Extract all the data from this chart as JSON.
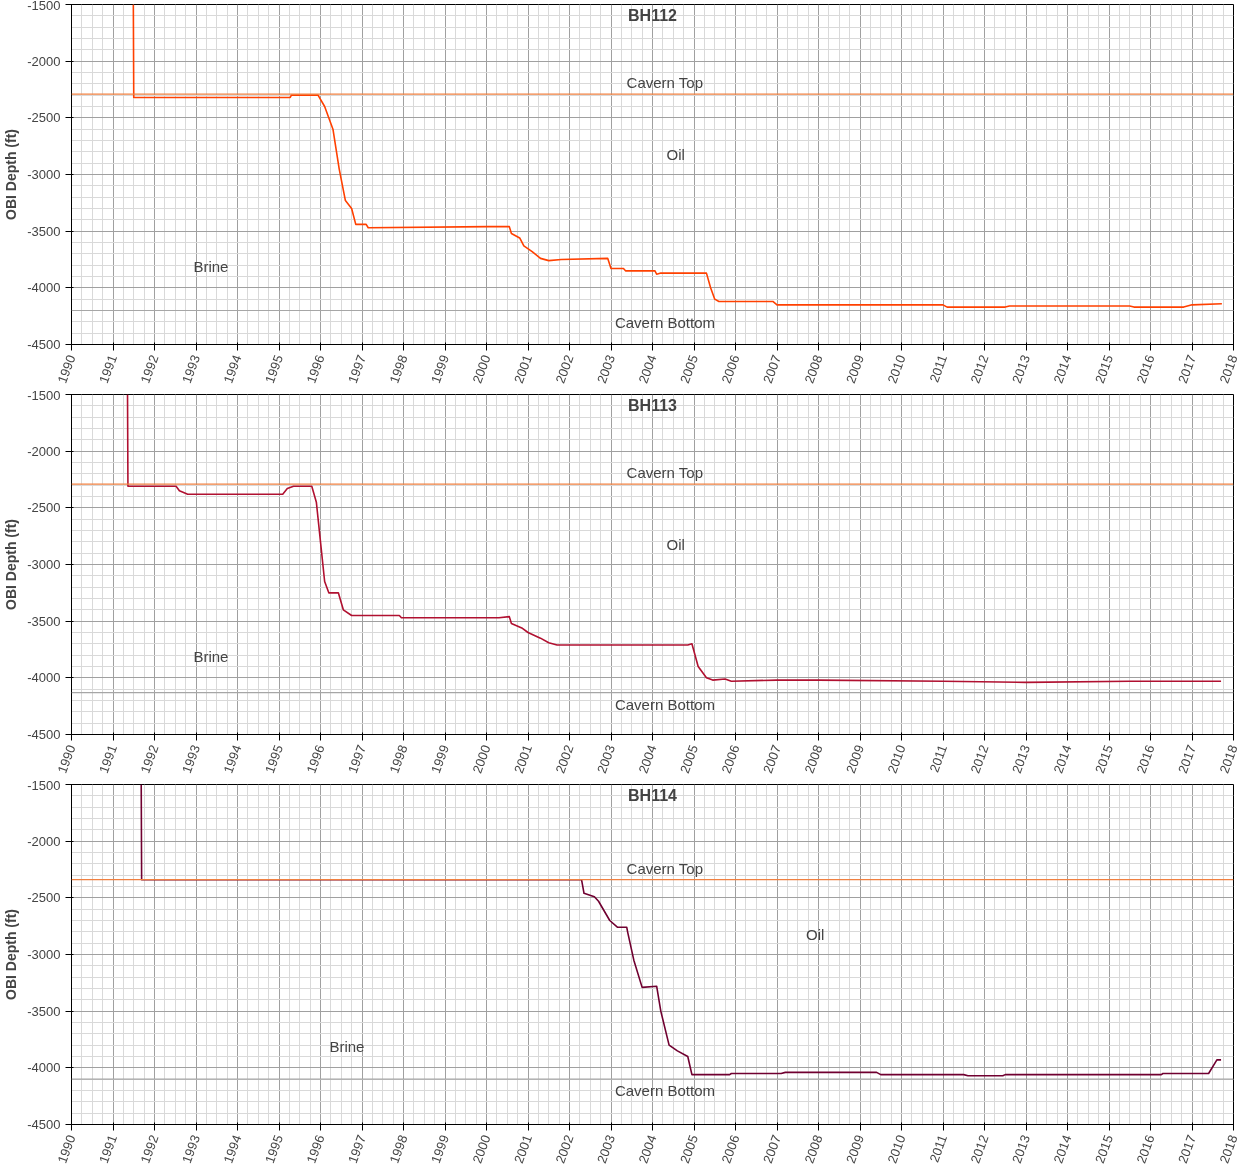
{
  "chart_data": [
    {
      "type": "line",
      "title": "BH112",
      "ylabel": "OBI Depth (ft)",
      "xlim": [
        1990,
        2018
      ],
      "xticks": [
        1990,
        1991,
        1992,
        1993,
        1994,
        1995,
        1996,
        1997,
        1998,
        1999,
        2000,
        2001,
        2002,
        2003,
        2004,
        2005,
        2006,
        2007,
        2008,
        2009,
        2010,
        2011,
        2012,
        2013,
        2014,
        2015,
        2016,
        2017,
        2018
      ],
      "ylim": [
        -4500,
        -1500
      ],
      "yticks": [
        -4500,
        -4000,
        -3500,
        -3000,
        -2500,
        -2000,
        -1500
      ],
      "grid": true,
      "marker": "none",
      "line_style": "solid",
      "series": [
        {
          "color": "#ff4000",
          "x": [
            1991.49,
            1991.5,
            1995.27,
            1995.3,
            1995.94,
            1996.1,
            1996.3,
            1996.45,
            1996.6,
            1996.75,
            1996.85,
            1997.1,
            1997.15,
            2000.04,
            2000.55,
            2000.6,
            2000.8,
            2000.9,
            2001.1,
            2001.3,
            2001.5,
            2001.8,
            2002.92,
            2003.0,
            2003.3,
            2003.35,
            2004.06,
            2004.1,
            2004.2,
            2005.3,
            2005.4,
            2005.5,
            2005.6,
            2006.9,
            2007.0,
            2011.0,
            2011.1,
            2012.5,
            2012.6,
            2015.5,
            2015.6,
            2016.8,
            2017.0,
            2017.72
          ],
          "values": [
            -1500,
            -2320,
            -2320,
            -2300,
            -2300,
            -2400,
            -2600,
            -2950,
            -3230,
            -3300,
            -3440,
            -3440,
            -3470,
            -3460,
            -3460,
            -3520,
            -3560,
            -3630,
            -3680,
            -3740,
            -3760,
            -3750,
            -3740,
            -3830,
            -3830,
            -3850,
            -3850,
            -3880,
            -3870,
            -3870,
            -4000,
            -4100,
            -4120,
            -4120,
            -4150,
            -4150,
            -4170,
            -4170,
            -4160,
            -4160,
            -4170,
            -4170,
            -4150,
            -4140
          ]
        }
      ],
      "ref_lines": [
        {
          "axis": "y",
          "value": -2290,
          "label": "Cavern Top",
          "color": "#f08040"
        },
        {
          "axis": "y",
          "value": -4200,
          "label": "Cavern Bottom",
          "color": "#a6a6a6"
        }
      ],
      "annotations": [
        "Oil",
        "Brine"
      ]
    },
    {
      "type": "line",
      "title": "BH113",
      "ylabel": "OBI Depth (ft)",
      "xlim": [
        1990,
        2018
      ],
      "xticks": [
        1990,
        1991,
        1992,
        1993,
        1994,
        1995,
        1996,
        1997,
        1998,
        1999,
        2000,
        2001,
        2002,
        2003,
        2004,
        2005,
        2006,
        2007,
        2008,
        2009,
        2010,
        2011,
        2012,
        2013,
        2014,
        2015,
        2016,
        2017,
        2018
      ],
      "ylim": [
        -4500,
        -1500
      ],
      "yticks": [
        -4500,
        -4000,
        -3500,
        -3000,
        -2500,
        -2000,
        -1500
      ],
      "grid": true,
      "marker": "none",
      "line_style": "solid",
      "series": [
        {
          "color": "#b01030",
          "x": [
            1991.35,
            1991.36,
            1992.52,
            1992.6,
            1992.8,
            1995.09,
            1995.2,
            1995.35,
            1995.79,
            1995.9,
            1996.0,
            1996.1,
            1996.2,
            1996.43,
            1996.55,
            1996.75,
            1997.9,
            1997.95,
            2000.3,
            2000.55,
            2000.6,
            2000.85,
            2001.0,
            2001.3,
            2001.5,
            2001.7,
            2004.85,
            2004.95,
            2005.1,
            2005.3,
            2005.45,
            2005.75,
            2005.9,
            2007.0,
            2008.0,
            2011.0,
            2013.0,
            2015.5,
            2017.7
          ],
          "values": [
            -1500,
            -2310,
            -2310,
            -2350,
            -2380,
            -2380,
            -2330,
            -2310,
            -2310,
            -2450,
            -2800,
            -3150,
            -3250,
            -3250,
            -3400,
            -3450,
            -3450,
            -3470,
            -3470,
            -3460,
            -3520,
            -3560,
            -3600,
            -3650,
            -3690,
            -3710,
            -3710,
            -3700,
            -3900,
            -4000,
            -4020,
            -4010,
            -4030,
            -4020,
            -4020,
            -4030,
            -4040,
            -4030,
            -4030
          ]
        }
      ],
      "ref_lines": [
        {
          "axis": "y",
          "value": -2290,
          "label": "Cavern Top",
          "color": "#f08040"
        },
        {
          "axis": "y",
          "value": -4130,
          "label": "Cavern Bottom",
          "color": "#a6a6a6"
        }
      ],
      "annotations": [
        "Oil",
        "Brine"
      ]
    },
    {
      "type": "line",
      "title": "BH114",
      "ylabel": "OBI Depth (ft)",
      "xlim": [
        1990,
        2018
      ],
      "xticks": [
        1990,
        1991,
        1992,
        1993,
        1994,
        1995,
        1996,
        1997,
        1998,
        1999,
        2000,
        2001,
        2002,
        2003,
        2004,
        2005,
        2006,
        2007,
        2008,
        2009,
        2010,
        2011,
        2012,
        2013,
        2014,
        2015,
        2016,
        2017,
        2018
      ],
      "ylim": [
        -4500,
        -1500
      ],
      "yticks": [
        -4500,
        -4000,
        -3500,
        -3000,
        -2500,
        -2000,
        -1500
      ],
      "grid": true,
      "marker": "none",
      "line_style": "solid",
      "series": [
        {
          "color": "#700030",
          "x": [
            1991.68,
            1991.69,
            2002.29,
            2002.35,
            2002.6,
            2002.7,
            2002.97,
            2003.16,
            2003.38,
            2003.4,
            2003.55,
            2003.75,
            2004.1,
            2004.2,
            2004.4,
            2004.6,
            2004.85,
            2004.95,
            2005.86,
            2005.9,
            2007.1,
            2007.2,
            2009.4,
            2009.5,
            2011.5,
            2011.6,
            2012.44,
            2012.5,
            2016.26,
            2016.3,
            2017.4,
            2017.6,
            2017.7
          ],
          "values": [
            -1500,
            -2340,
            -2340,
            -2460,
            -2490,
            -2530,
            -2700,
            -2760,
            -2760,
            -2800,
            -3050,
            -3290,
            -3280,
            -3500,
            -3800,
            -3850,
            -3900,
            -4060,
            -4060,
            -4050,
            -4050,
            -4040,
            -4040,
            -4060,
            -4060,
            -4070,
            -4070,
            -4060,
            -4060,
            -4050,
            -4050,
            -3930,
            -3930
          ]
        }
      ],
      "ref_lines": [
        {
          "axis": "y",
          "value": -2340,
          "label": "Cavern Top",
          "color": "#f08040"
        },
        {
          "axis": "y",
          "value": -4100,
          "label": "Cavern Bottom",
          "color": "#a6a6a6"
        }
      ],
      "annotations": [
        "Oil",
        "Brine"
      ]
    }
  ]
}
